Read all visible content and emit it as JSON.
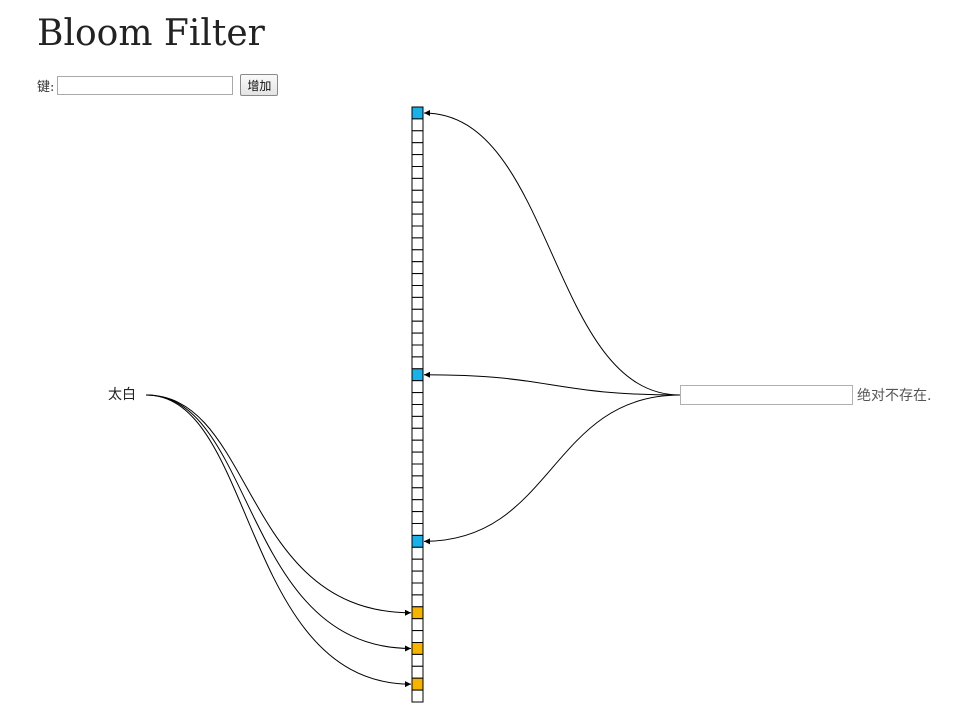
{
  "page": {
    "title": "Bloom Filter"
  },
  "form": {
    "key_label": "键:",
    "key_value": "",
    "add_button_label": "增加"
  },
  "bit_array": {
    "size": 50,
    "added_bits": [
      42,
      45,
      48
    ],
    "query_bits": [
      0,
      22,
      36
    ],
    "added_color": "#f5b400",
    "query_color": "#1ab0e8",
    "empty_color": "#ffffff"
  },
  "added_key": {
    "label": "太白"
  },
  "query": {
    "value": "",
    "result_text": "绝对不存在."
  }
}
